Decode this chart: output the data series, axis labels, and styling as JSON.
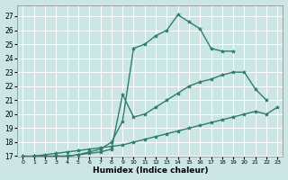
{
  "bg_color": "#cce5e5",
  "grid_color": "#ffffff",
  "line_color": "#2d7d6e",
  "line_width": 1.0,
  "marker": "*",
  "marker_size": 3,
  "xlabel": "Humidex (Indice chaleur)",
  "xlim": [
    -0.5,
    23.5
  ],
  "ylim": [
    17,
    27.8
  ],
  "yticks": [
    17,
    18,
    19,
    20,
    21,
    22,
    23,
    24,
    25,
    26,
    27
  ],
  "xticks": [
    0,
    1,
    2,
    3,
    4,
    5,
    6,
    7,
    8,
    9,
    10,
    11,
    12,
    13,
    14,
    15,
    16,
    17,
    18,
    19,
    20,
    21,
    22,
    23
  ],
  "line1_x": [
    1,
    2,
    3,
    4,
    5,
    6,
    7,
    8,
    9,
    10,
    11,
    12,
    13,
    14,
    15,
    16,
    17,
    18,
    19
  ],
  "line1_y": [
    17.0,
    17.0,
    17.0,
    17.0,
    17.1,
    17.3,
    17.5,
    18.0,
    19.5,
    24.7,
    25.0,
    25.6,
    26.0,
    27.1,
    26.6,
    26.1,
    24.7,
    24.5,
    24.5
  ],
  "line2_x": [
    3,
    4,
    5,
    6,
    7,
    8,
    9,
    10,
    11,
    12,
    13,
    14,
    15,
    16,
    17,
    18,
    19,
    20,
    21,
    22
  ],
  "line2_y": [
    17.0,
    17.0,
    17.1,
    17.2,
    17.3,
    17.5,
    21.4,
    19.8,
    20.0,
    20.5,
    21.0,
    21.5,
    22.0,
    22.3,
    22.5,
    22.8,
    23.0,
    23.0,
    21.8,
    21.0
  ],
  "line3_x": [
    0,
    1,
    2,
    3,
    4,
    5,
    6,
    7,
    8,
    9,
    10,
    11,
    12,
    13,
    14,
    15,
    16,
    17,
    18,
    19,
    20,
    21,
    22,
    23
  ],
  "line3_y": [
    17.0,
    17.0,
    17.1,
    17.2,
    17.3,
    17.4,
    17.5,
    17.6,
    17.7,
    17.8,
    18.0,
    18.2,
    18.4,
    18.6,
    18.8,
    19.0,
    19.2,
    19.4,
    19.6,
    19.8,
    20.0,
    20.2,
    20.0,
    20.5
  ]
}
